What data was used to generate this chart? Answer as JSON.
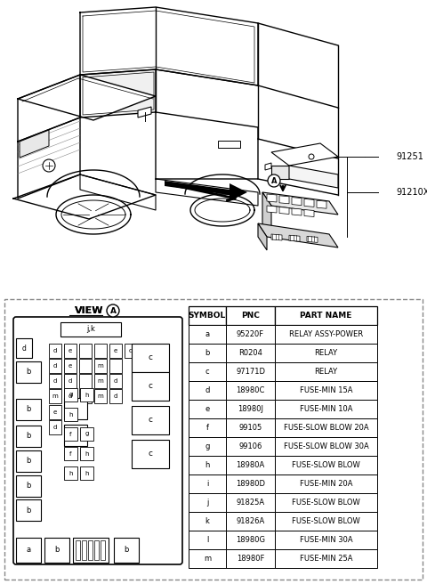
{
  "bg_color": "#ffffff",
  "part_label1": "91251",
  "part_label2": "91210X",
  "view_label": "VIEW",
  "circle_label": "A",
  "table_headers": [
    "SYMBOL",
    "PNC",
    "PART NAME"
  ],
  "table_data": [
    [
      "a",
      "95220F",
      "RELAY ASSY-POWER"
    ],
    [
      "b",
      "R0204",
      "RELAY"
    ],
    [
      "c",
      "97171D",
      "RELAY"
    ],
    [
      "d",
      "18980C",
      "FUSE-MIN 15A"
    ],
    [
      "e",
      "18980J",
      "FUSE-MIN 10A"
    ],
    [
      "f",
      "99105",
      "FUSE-SLOW BLOW 20A"
    ],
    [
      "g",
      "99106",
      "FUSE-SLOW BLOW 30A"
    ],
    [
      "h",
      "18980A",
      "FUSE-SLOW BLOW"
    ],
    [
      "i",
      "18980D",
      "FUSE-MIN 20A"
    ],
    [
      "j",
      "91825A",
      "FUSE-SLOW BLOW"
    ],
    [
      "k",
      "91826A",
      "FUSE-SLOW BLOW"
    ],
    [
      "l",
      "18980G",
      "FUSE-MIN 30A"
    ],
    [
      "m",
      "18980F",
      "FUSE-MIN 25A"
    ]
  ]
}
